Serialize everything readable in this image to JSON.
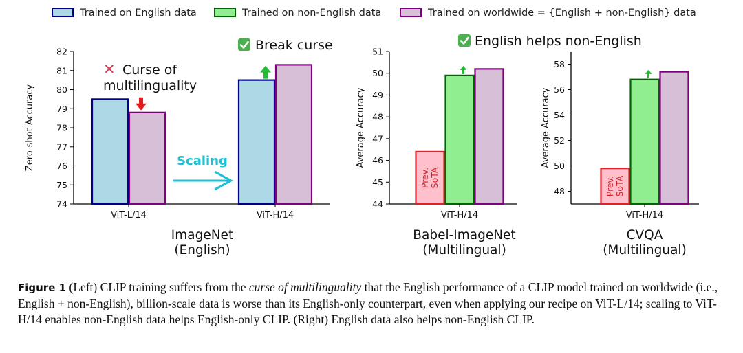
{
  "legend": [
    {
      "label": "Trained on English data",
      "fill": "#add8e6",
      "stroke": "#00008b"
    },
    {
      "label": "Trained on non-English data",
      "fill": "#90ee90",
      "stroke": "#006400"
    },
    {
      "label": "Trained on worldwide = {English + non-English} data",
      "fill": "#d8bfd8",
      "stroke": "#800080"
    }
  ],
  "colors": {
    "english_fill": "#add8e6",
    "english_stroke": "#00008b",
    "nonenglish_fill": "#90ee90",
    "nonenglish_stroke": "#006400",
    "worldwide_fill": "#d8bfd8",
    "worldwide_stroke": "#800080",
    "prev_fill": "#ffc0cb",
    "prev_stroke": "#e0202a",
    "prev_text": "#d0202a",
    "down_arrow": "#e41a1c",
    "up_arrow": "#22bb33",
    "check": "#4caf50",
    "cross": "#e03c5a",
    "scaling": "#1fbfd4"
  },
  "annotations": {
    "curse_line1": "Curse of",
    "curse_line2": "multilinguality",
    "break_curse": "Break curse",
    "english_helps": "English helps non-English",
    "scaling": "Scaling",
    "prev_sota_line1": "Prev.",
    "prev_sota_line2": "SoTA"
  },
  "chart_data": [
    {
      "type": "bar",
      "panel": "ImageNet",
      "panel_title": [
        "ImageNet",
        "(English)"
      ],
      "ylabel": "Zero-shot Accuracy",
      "ylim": [
        74,
        82
      ],
      "yticks": [
        74,
        75,
        76,
        77,
        78,
        79,
        80,
        81,
        82
      ],
      "groups": [
        {
          "label": "ViT-L/14",
          "bars": [
            {
              "series": "Trained on English data",
              "value": 79.5
            },
            {
              "series": "Trained on worldwide = {English + non-English} data",
              "value": 78.8
            }
          ]
        },
        {
          "label": "ViT-H/14",
          "bars": [
            {
              "series": "Trained on English data",
              "value": 80.5
            },
            {
              "series": "Trained on worldwide = {English + non-English} data",
              "value": 81.3
            }
          ]
        }
      ]
    },
    {
      "type": "bar",
      "panel": "Babel-ImageNet",
      "panel_title": [
        "Babel-ImageNet",
        "(Multilingual)"
      ],
      "ylabel": "Average Accuracy",
      "ylim": [
        44,
        51
      ],
      "yticks": [
        44,
        45,
        46,
        47,
        48,
        49,
        50,
        51
      ],
      "groups": [
        {
          "label": "ViT-H/14",
          "bars": [
            {
              "series": "Prev. SoTA",
              "value": 46.4
            },
            {
              "series": "Trained on non-English data",
              "value": 49.9
            },
            {
              "series": "Trained on worldwide = {English + non-English} data",
              "value": 50.2
            }
          ]
        }
      ]
    },
    {
      "type": "bar",
      "panel": "CVQA",
      "panel_title": [
        "CVQA",
        "(Multilingual)"
      ],
      "ylabel": "Average Accuracy",
      "ylim": [
        47,
        59
      ],
      "yticks": [
        48,
        50,
        52,
        54,
        56,
        58
      ],
      "groups": [
        {
          "label": "ViT-H/14",
          "bars": [
            {
              "series": "Prev. SoTA",
              "value": 49.8
            },
            {
              "series": "Trained on non-English data",
              "value": 56.8
            },
            {
              "series": "Trained on worldwide = {English + non-English} data",
              "value": 57.4
            }
          ]
        }
      ]
    }
  ],
  "caption": {
    "label": "Figure 1",
    "part1": " (Left) CLIP training suffers from the ",
    "emph": "curse of multilinguality",
    "part2": " that the English performance of a CLIP model trained on worldwide (i.e., English + non-English), billion-scale data is worse than its English-only counterpart, even when applying our recipe on ViT-L/14; scaling to ViT-H/14 enables non-English data helps English-only CLIP. (Right) English data also helps non-English CLIP."
  }
}
